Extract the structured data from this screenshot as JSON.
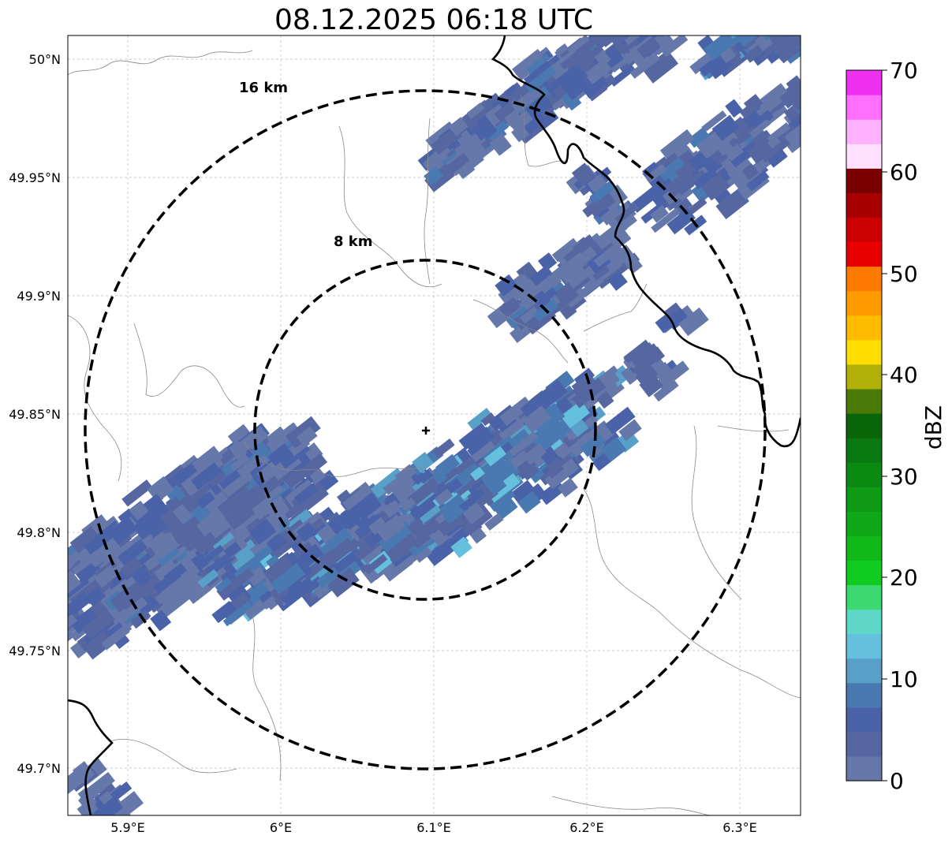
{
  "title": "08.12.2025 06:18 UTC",
  "map": {
    "lat_ticks": [
      "50°N",
      "49.95°N",
      "49.9°N",
      "49.85°N",
      "49.8°N",
      "49.75°N",
      "49.7°N"
    ],
    "lon_ticks": [
      "5.9°E",
      "6°E",
      "6.1°E",
      "6.2°E",
      "6.3°E"
    ],
    "range_rings": [
      {
        "label": "16 km",
        "radius_km": 16
      },
      {
        "label": "8 km",
        "radius_km": 8
      }
    ],
    "radar_site_marker": "plus-icon",
    "gridlines": true
  },
  "colorbar": {
    "label": "dBZ",
    "tick_labels": [
      "70",
      "60",
      "50",
      "40",
      "30",
      "20",
      "10",
      "0"
    ],
    "colors": [
      "#6677aa",
      "#5566a0",
      "#4a62a8",
      "#4a78b0",
      "#58a0c8",
      "#64c0dc",
      "#5ed6c8",
      "#3cd870",
      "#10cc20",
      "#10b818",
      "#10a818",
      "#0e9a14",
      "#0a8a10",
      "#087810",
      "#086608",
      "#4a7a08",
      "#b0b008",
      "#ffdd00",
      "#ffbb00",
      "#ff9a00",
      "#ff7a00",
      "#e80000",
      "#cc0000",
      "#a80000",
      "#7a0000",
      "#ffe0ff",
      "#ffb0ff",
      "#ff70ff",
      "#f030f0"
    ],
    "range": [
      0,
      70
    ]
  }
}
